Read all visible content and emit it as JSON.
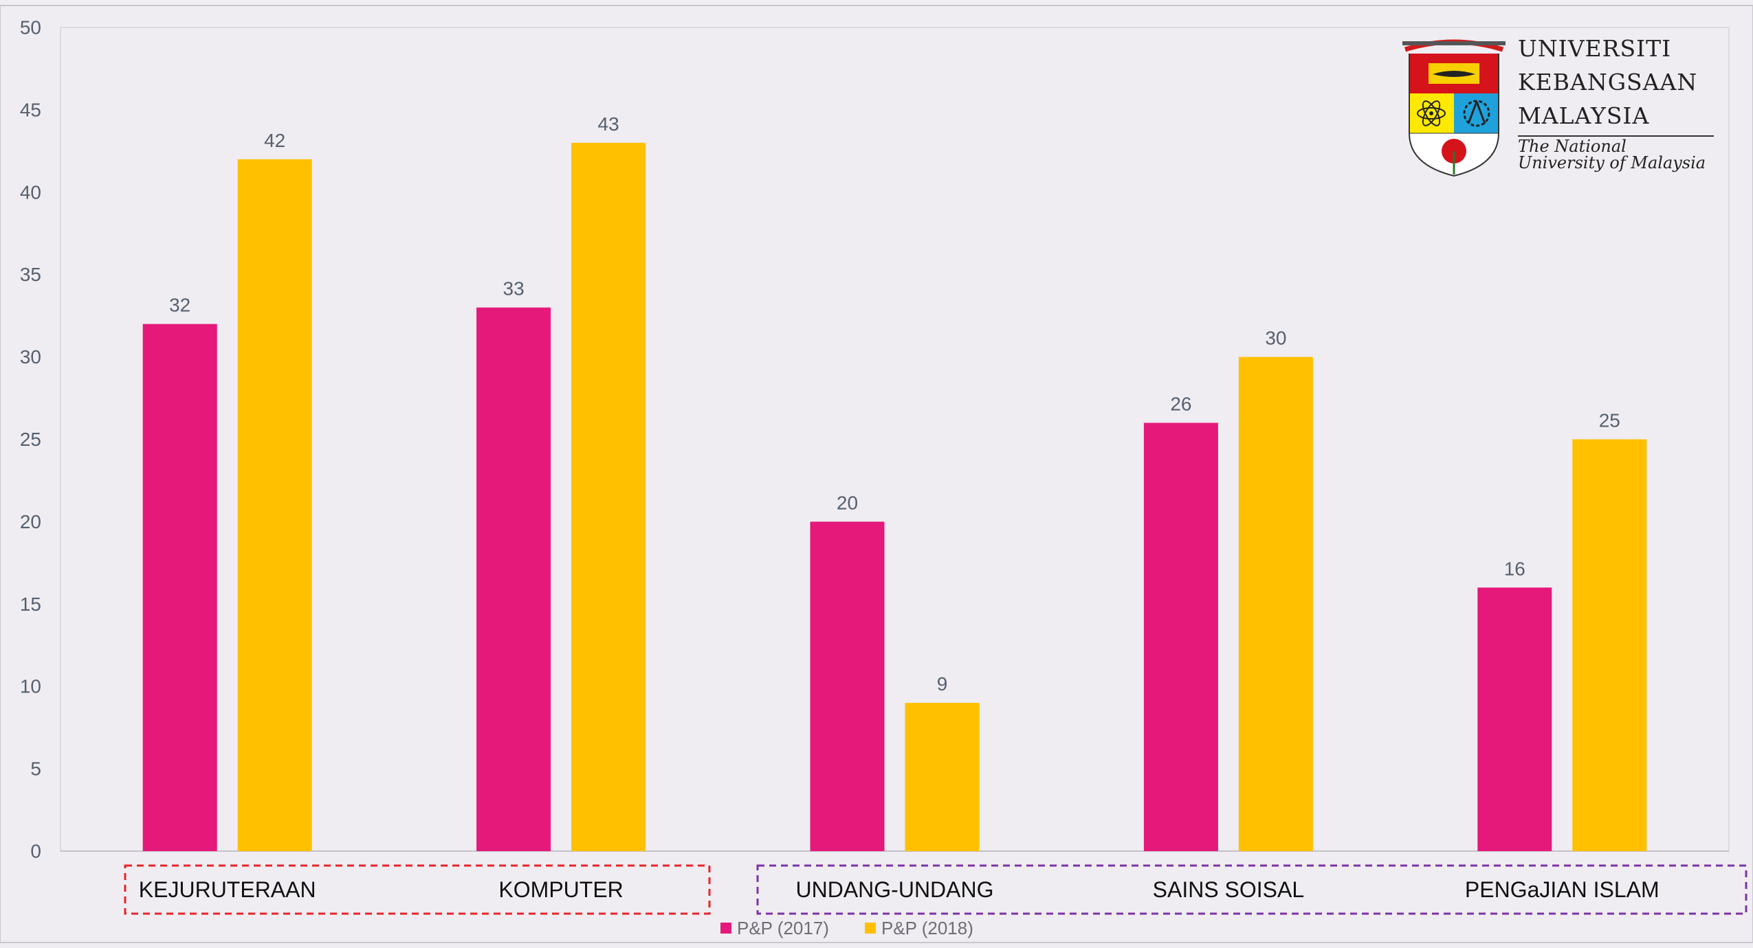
{
  "colors": {
    "series_2017": "#e5197a",
    "series_2018": "#ffc000",
    "group_1_border": "#e8232a",
    "group_2_border": "#7b33a8",
    "background": "#efedf1",
    "axis_text": "#556070"
  },
  "logo": {
    "line1": "UNIVERSITI",
    "line2": "KEBANGSAAN",
    "line3": "MALAYSIA",
    "tagline": "The National University of Malaysia"
  },
  "chart_data": {
    "type": "bar",
    "title": "",
    "xlabel": "",
    "ylabel": "",
    "ylim": [
      0,
      50
    ],
    "y_ticks": [
      0,
      5,
      10,
      15,
      20,
      25,
      30,
      35,
      40,
      45,
      50
    ],
    "grid": false,
    "legend_position": "bottom-center",
    "categories": [
      "KEJURUTERAAN",
      "KOMPUTER",
      "UNDANG-UNDANG",
      "SAINS SOISAL",
      "PENGaJIAN ISLAM"
    ],
    "category_groups": [
      {
        "categories": [
          "KEJURUTERAAN",
          "KOMPUTER"
        ],
        "border": "dashed-red"
      },
      {
        "categories": [
          "UNDANG-UNDANG",
          "SAINS SOISAL",
          "PENGaJIAN ISLAM"
        ],
        "border": "dashed-purple"
      }
    ],
    "series": [
      {
        "name": "P&P (2017)",
        "values": [
          32,
          33,
          20,
          26,
          16
        ]
      },
      {
        "name": "P&P (2018)",
        "values": [
          42,
          43,
          9,
          30,
          25
        ]
      }
    ]
  }
}
